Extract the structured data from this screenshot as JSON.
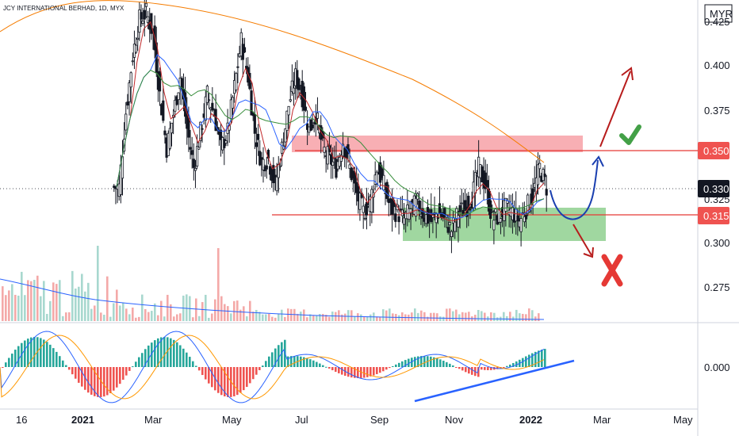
{
  "header": {
    "symbol_line": "JCY INTERNATIONAL BERHAD, 1D, MYX",
    "currency": "MYR"
  },
  "colors": {
    "up": "#26a69a",
    "down": "#ef5350",
    "candle": "#131722",
    "ma_fast": "#c2282a",
    "ma_mid": "#2962ff",
    "ma_slow": "#388e3c",
    "ma_long": "#f57c00",
    "resistance_zone": "#f7a1a7",
    "support_zone": "#8fd08f",
    "level_line": "#e53935",
    "current_badge": "#131722",
    "macd_line": "#2962ff",
    "signal_line": "#ff9800",
    "trendline": "#2962ff",
    "arrow_up": "#b71c1c",
    "arrow_path": "#1a3fb0",
    "check": "#43a047",
    "cross": "#e53935"
  },
  "icons": {
    "check": "check-icon",
    "cross": "cross-icon"
  },
  "chart_data": {
    "type": "candlestick",
    "price_axis": {
      "ylim": [
        0.255,
        0.435
      ],
      "ticks": [
        0.3,
        0.325,
        0.375,
        0.4,
        0.425
      ],
      "tick_labels": [
        "0.300",
        "0.325",
        "0.375",
        "0.400",
        "0.425"
      ],
      "lower_ticks": [
        0.275
      ],
      "lower_tick_labels": [
        "0.275"
      ]
    },
    "macd_axis": {
      "ticks": [
        0.0
      ],
      "tick_labels": [
        "0.000"
      ]
    },
    "time_axis": {
      "labels": [
        "16",
        "2021",
        "Mar",
        "May",
        "Jul",
        "Sep",
        "Nov",
        "2022",
        "Mar",
        "May"
      ]
    },
    "current_price": 0.33,
    "current_price_label": "0.330",
    "levels": [
      {
        "name": "resistance",
        "value": 0.35,
        "label": "0.350"
      },
      {
        "name": "support",
        "value": 0.315,
        "label": "0.315"
      }
    ],
    "zones": [
      {
        "name": "resistance-zone",
        "from": 0.35,
        "to": 0.358
      },
      {
        "name": "support-zone",
        "from": 0.3,
        "to": 0.319
      }
    ],
    "price_series_close": [
      0.33,
      0.372,
      0.404,
      0.424,
      0.428,
      0.416,
      0.382,
      0.352,
      0.371,
      0.392,
      0.363,
      0.341,
      0.361,
      0.382,
      0.371,
      0.352,
      0.361,
      0.386,
      0.412,
      0.392,
      0.361,
      0.344,
      0.346,
      0.331,
      0.352,
      0.376,
      0.392,
      0.381,
      0.362,
      0.371,
      0.352,
      0.346,
      0.341,
      0.356,
      0.341,
      0.326,
      0.316,
      0.322,
      0.341,
      0.331,
      0.318,
      0.316,
      0.312,
      0.318,
      0.321,
      0.314,
      0.311,
      0.316,
      0.312,
      0.306,
      0.316,
      0.318,
      0.324,
      0.341,
      0.331,
      0.312,
      0.314,
      0.318,
      0.316,
      0.311,
      0.318,
      0.326,
      0.341,
      0.33
    ],
    "annotations": [
      "upside-arrow",
      "u-turn-path",
      "downside-arrow"
    ]
  }
}
